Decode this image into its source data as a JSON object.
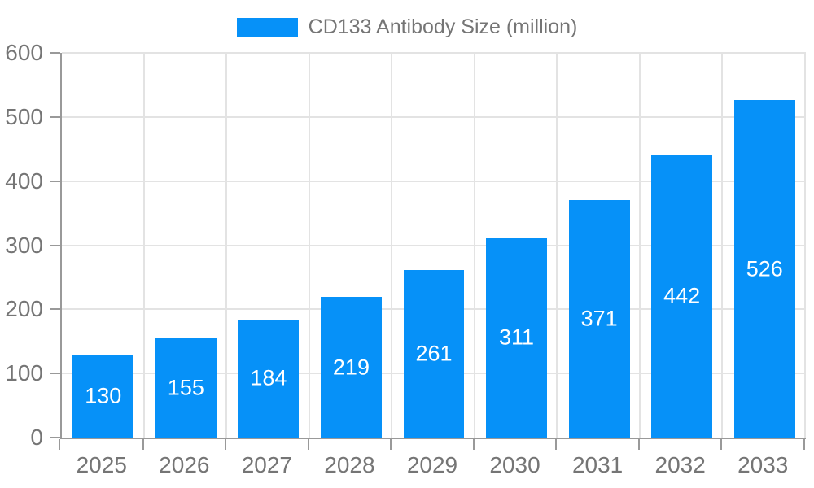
{
  "chart_data": {
    "type": "bar",
    "title": "",
    "xlabel": "",
    "ylabel": "",
    "categories": [
      "2025",
      "2026",
      "2027",
      "2028",
      "2029",
      "2030",
      "2031",
      "2032",
      "2033"
    ],
    "series": [
      {
        "name": "CD133 Antibody Size (million)",
        "values": [
          130,
          155,
          184,
          219,
          261,
          311,
          371,
          442,
          526
        ]
      }
    ],
    "bar_value_labels_shown": true,
    "ylim": [
      0,
      600
    ],
    "y_ticks": [
      0,
      100,
      200,
      300,
      400,
      500,
      600
    ],
    "grid": true,
    "legend": {
      "label": "CD133 Antibody Size (million)",
      "position": "top-center"
    }
  },
  "colors": {
    "bar_fill": "#0691f8",
    "bar_label_text": "#ffffff",
    "axis_line": "#999999",
    "grid_line": "#e3e3e3",
    "tick_text": "#757575",
    "legend_text": "#757575",
    "background": "#ffffff"
  }
}
